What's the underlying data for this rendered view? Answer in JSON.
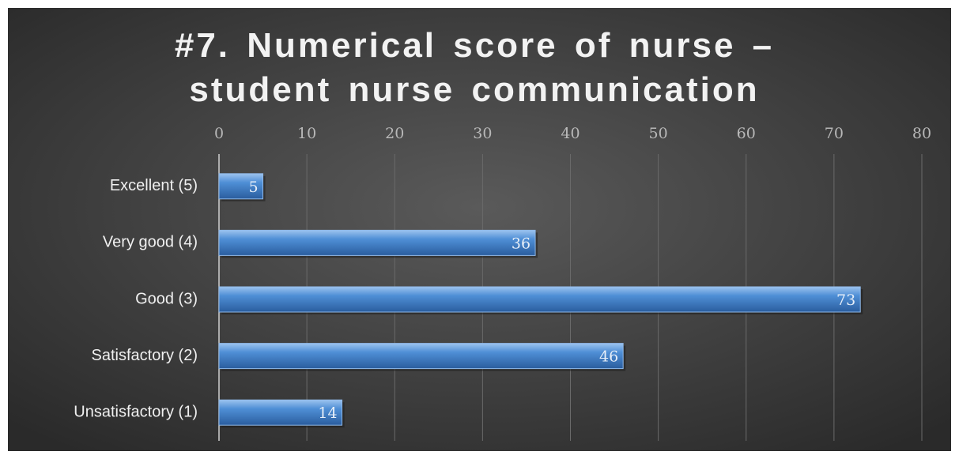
{
  "chart_data": {
    "type": "bar",
    "orientation": "horizontal",
    "title": "#7. Numerical score of nurse – student nurse communication",
    "categories": [
      "Excellent (5)",
      "Very good (4)",
      "Good (3)",
      "Satisfactory (2)",
      "Unsatisfactory (1)"
    ],
    "values": [
      5,
      36,
      73,
      46,
      14
    ],
    "color": "#4f8fd6",
    "xlim": [
      0,
      80
    ],
    "xticks": [
      0,
      10,
      20,
      30,
      40,
      50,
      60,
      70,
      80
    ],
    "grid": true
  }
}
